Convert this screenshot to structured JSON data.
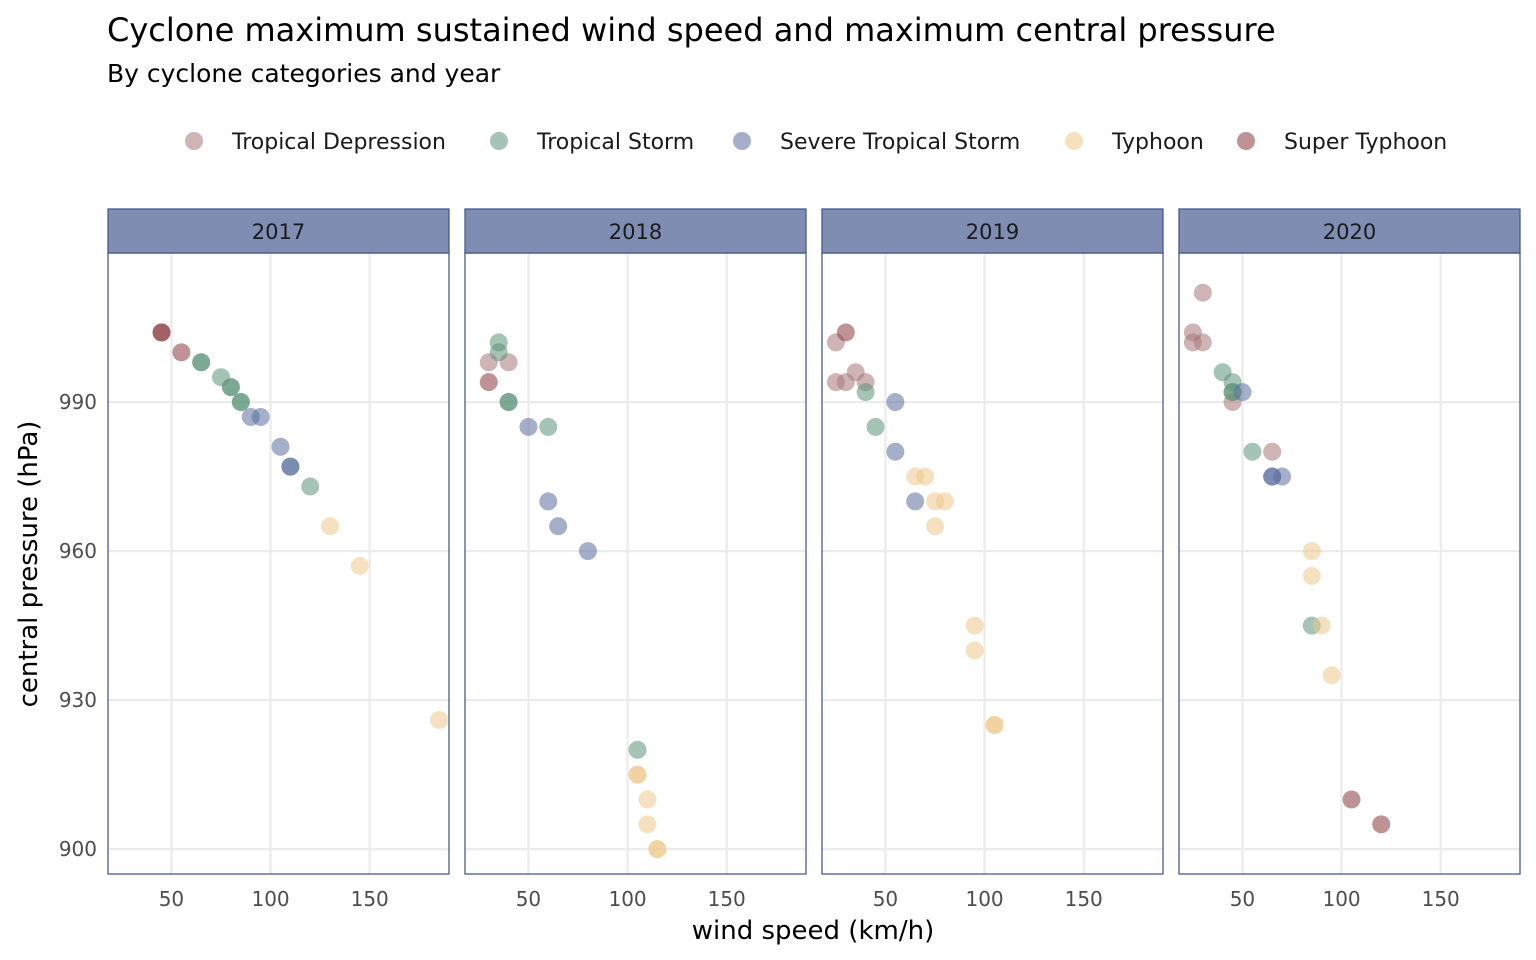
{
  "chart_data": {
    "type": "scatter",
    "title": "Cyclone maximum sustained wind speed and maximum central pressure",
    "subtitle": "By cyclone categories and year",
    "xlabel": "wind speed (km/h)",
    "ylabel": "central pressure (hPa)",
    "xlim": [
      18,
      190
    ],
    "ylim": [
      895,
      1020
    ],
    "xticks": [
      50,
      100,
      150
    ],
    "yticks": [
      900,
      930,
      960,
      990
    ],
    "grid": true,
    "legend_position": "top",
    "facets": [
      "2017",
      "2018",
      "2019",
      "2020"
    ],
    "colors": {
      "strip_fill": "#7f8db3",
      "strip_border": "#4a5a8a",
      "panel_border": "#4a5a8a",
      "grid": "#ebebeb"
    },
    "series": [
      {
        "name": "Tropical Depression",
        "color": "#a87678",
        "points": [
          {
            "facet": "2018",
            "x": 30,
            "y": 998
          },
          {
            "facet": "2018",
            "x": 40,
            "y": 998
          },
          {
            "facet": "2019",
            "x": 25,
            "y": 1002
          },
          {
            "facet": "2019",
            "x": 25,
            "y": 994
          },
          {
            "facet": "2019",
            "x": 30,
            "y": 994
          },
          {
            "facet": "2019",
            "x": 35,
            "y": 996
          },
          {
            "facet": "2019",
            "x": 40,
            "y": 994
          },
          {
            "facet": "2020",
            "x": 30,
            "y": 1012
          },
          {
            "facet": "2020",
            "x": 25,
            "y": 1004
          },
          {
            "facet": "2020",
            "x": 25,
            "y": 1002
          },
          {
            "facet": "2020",
            "x": 30,
            "y": 1002
          },
          {
            "facet": "2020",
            "x": 45,
            "y": 990
          },
          {
            "facet": "2020",
            "x": 65,
            "y": 980
          }
        ]
      },
      {
        "name": "Tropical Storm",
        "color": "#5b9478",
        "points": [
          {
            "facet": "2017",
            "x": 65,
            "y": 998
          },
          {
            "facet": "2017",
            "x": 65,
            "y": 998
          },
          {
            "facet": "2017",
            "x": 75,
            "y": 995
          },
          {
            "facet": "2017",
            "x": 80,
            "y": 993
          },
          {
            "facet": "2017",
            "x": 80,
            "y": 993
          },
          {
            "facet": "2017",
            "x": 85,
            "y": 990
          },
          {
            "facet": "2017",
            "x": 85,
            "y": 990
          },
          {
            "facet": "2017",
            "x": 120,
            "y": 973
          },
          {
            "facet": "2018",
            "x": 35,
            "y": 1002
          },
          {
            "facet": "2018",
            "x": 35,
            "y": 1000
          },
          {
            "facet": "2018",
            "x": 40,
            "y": 990
          },
          {
            "facet": "2018",
            "x": 40,
            "y": 990
          },
          {
            "facet": "2018",
            "x": 60,
            "y": 985
          },
          {
            "facet": "2018",
            "x": 105,
            "y": 920
          },
          {
            "facet": "2019",
            "x": 40,
            "y": 992
          },
          {
            "facet": "2019",
            "x": 45,
            "y": 985
          },
          {
            "facet": "2020",
            "x": 40,
            "y": 996
          },
          {
            "facet": "2020",
            "x": 45,
            "y": 994
          },
          {
            "facet": "2020",
            "x": 45,
            "y": 992
          },
          {
            "facet": "2020",
            "x": 45,
            "y": 992
          },
          {
            "facet": "2020",
            "x": 55,
            "y": 980
          },
          {
            "facet": "2020",
            "x": 85,
            "y": 945
          }
        ]
      },
      {
        "name": "Severe Tropical Storm",
        "color": "#5b6e9e",
        "points": [
          {
            "facet": "2017",
            "x": 90,
            "y": 987
          },
          {
            "facet": "2017",
            "x": 95,
            "y": 987
          },
          {
            "facet": "2017",
            "x": 105,
            "y": 981
          },
          {
            "facet": "2017",
            "x": 110,
            "y": 977
          },
          {
            "facet": "2017",
            "x": 110,
            "y": 977
          },
          {
            "facet": "2018",
            "x": 50,
            "y": 985
          },
          {
            "facet": "2018",
            "x": 60,
            "y": 970
          },
          {
            "facet": "2018",
            "x": 65,
            "y": 965
          },
          {
            "facet": "2018",
            "x": 80,
            "y": 960
          },
          {
            "facet": "2019",
            "x": 55,
            "y": 990
          },
          {
            "facet": "2019",
            "x": 55,
            "y": 980
          },
          {
            "facet": "2019",
            "x": 65,
            "y": 970
          },
          {
            "facet": "2020",
            "x": 50,
            "y": 992
          },
          {
            "facet": "2020",
            "x": 65,
            "y": 975
          },
          {
            "facet": "2020",
            "x": 65,
            "y": 975
          },
          {
            "facet": "2020",
            "x": 70,
            "y": 975
          }
        ]
      },
      {
        "name": "Typhoon",
        "color": "#edc98b",
        "points": [
          {
            "facet": "2017",
            "x": 130,
            "y": 965
          },
          {
            "facet": "2017",
            "x": 145,
            "y": 957
          },
          {
            "facet": "2017",
            "x": 185,
            "y": 926
          },
          {
            "facet": "2018",
            "x": 105,
            "y": 915
          },
          {
            "facet": "2018",
            "x": 105,
            "y": 915
          },
          {
            "facet": "2018",
            "x": 110,
            "y": 910
          },
          {
            "facet": "2018",
            "x": 110,
            "y": 905
          },
          {
            "facet": "2018",
            "x": 115,
            "y": 900
          },
          {
            "facet": "2018",
            "x": 115,
            "y": 900
          },
          {
            "facet": "2019",
            "x": 65,
            "y": 975
          },
          {
            "facet": "2019",
            "x": 70,
            "y": 975
          },
          {
            "facet": "2019",
            "x": 75,
            "y": 970
          },
          {
            "facet": "2019",
            "x": 80,
            "y": 970
          },
          {
            "facet": "2019",
            "x": 75,
            "y": 965
          },
          {
            "facet": "2019",
            "x": 95,
            "y": 945
          },
          {
            "facet": "2019",
            "x": 95,
            "y": 940
          },
          {
            "facet": "2019",
            "x": 105,
            "y": 925
          },
          {
            "facet": "2019",
            "x": 105,
            "y": 925
          },
          {
            "facet": "2020",
            "x": 85,
            "y": 960
          },
          {
            "facet": "2020",
            "x": 85,
            "y": 955
          },
          {
            "facet": "2020",
            "x": 90,
            "y": 945
          },
          {
            "facet": "2020",
            "x": 95,
            "y": 935
          }
        ]
      },
      {
        "name": "Super Typhoon",
        "color": "#8a3a3e",
        "points": [
          {
            "facet": "2017",
            "x": 45,
            "y": 1004
          },
          {
            "facet": "2017",
            "x": 45,
            "y": 1004
          },
          {
            "facet": "2017",
            "x": 55,
            "y": 1000
          },
          {
            "facet": "2018",
            "x": 30,
            "y": 994
          },
          {
            "facet": "2019",
            "x": 30,
            "y": 1004
          },
          {
            "facet": "2020",
            "x": 105,
            "y": 910
          },
          {
            "facet": "2020",
            "x": 120,
            "y": 905
          }
        ]
      }
    ]
  }
}
